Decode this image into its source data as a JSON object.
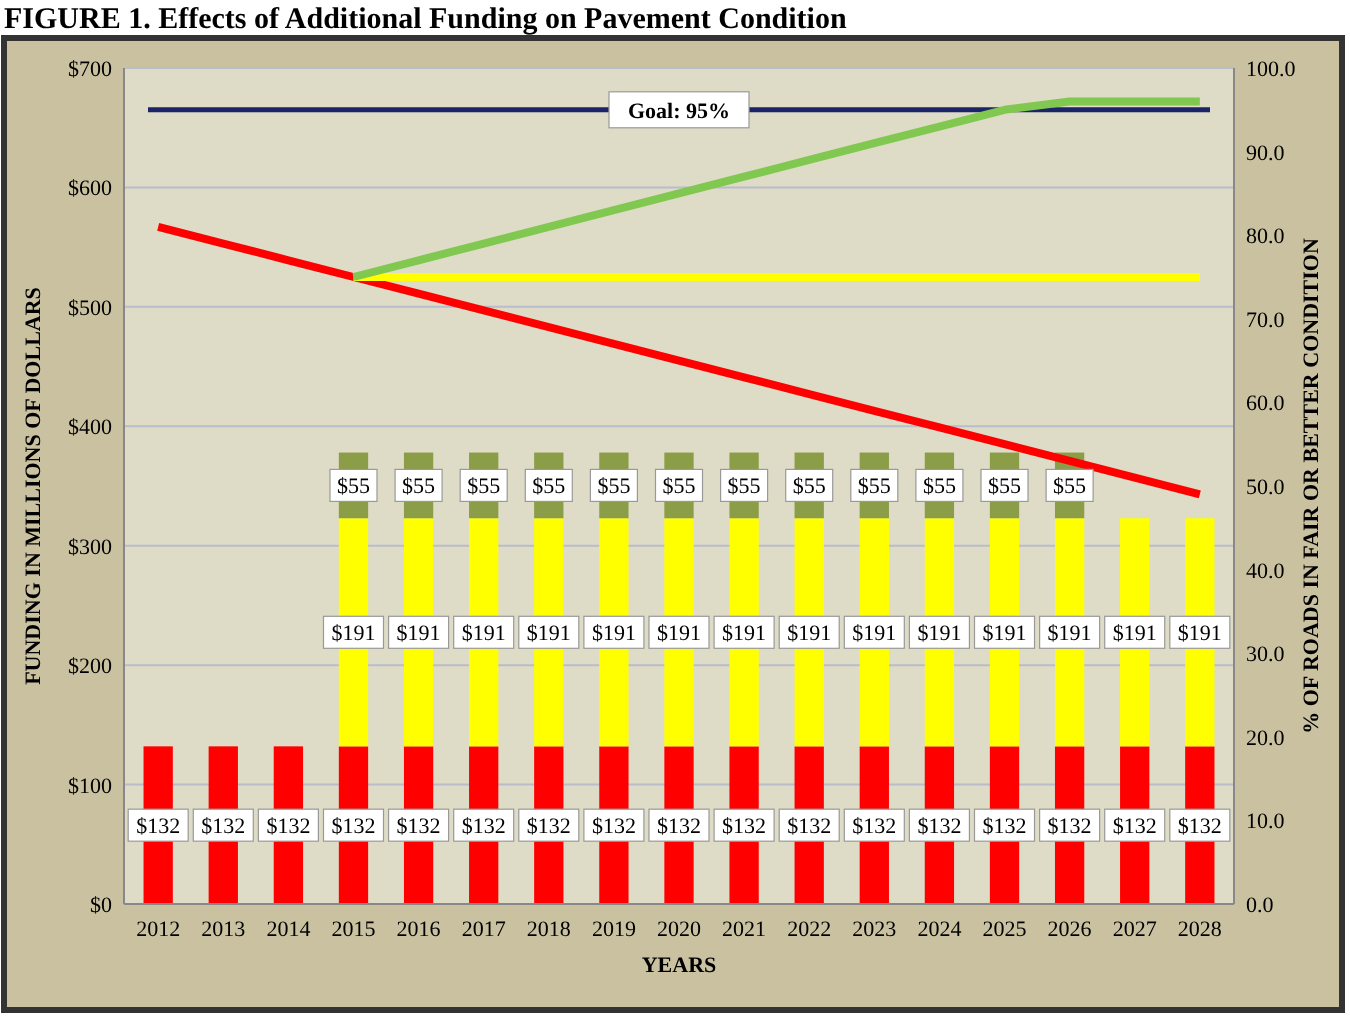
{
  "chart_data": {
    "type": "bar",
    "title": "FIGURE 1. Effects of Additional Funding on Pavement Condition",
    "xlabel": "YEARS",
    "ylabel": "FUNDING IN MILLIONS OF DOLLARS",
    "y2label": "% OF ROADS IN FAIR OR BETTER CONDITION",
    "categories": [
      "2012",
      "2013",
      "2014",
      "2015",
      "2016",
      "2017",
      "2018",
      "2019",
      "2020",
      "2021",
      "2022",
      "2023",
      "2024",
      "2025",
      "2026",
      "2027",
      "2028"
    ],
    "stacked": true,
    "grid": "y",
    "ylim": [
      0,
      700
    ],
    "yticks": [
      {
        "value": 0,
        "label": "$0"
      },
      {
        "value": 100,
        "label": "$100"
      },
      {
        "value": 200,
        "label": "$200"
      },
      {
        "value": 300,
        "label": "$300"
      },
      {
        "value": 400,
        "label": "$400"
      },
      {
        "value": 500,
        "label": "$500"
      },
      {
        "value": 600,
        "label": "$600"
      },
      {
        "value": 700,
        "label": "$700"
      }
    ],
    "y2lim": [
      0,
      100
    ],
    "y2ticks": [
      {
        "value": 0,
        "label": "0.0"
      },
      {
        "value": 10,
        "label": "10.0"
      },
      {
        "value": 20,
        "label": "20.0"
      },
      {
        "value": 30,
        "label": "30.0"
      },
      {
        "value": 40,
        "label": "40.0"
      },
      {
        "value": 50,
        "label": "50.0"
      },
      {
        "value": 60,
        "label": "60.0"
      },
      {
        "value": 70,
        "label": "70.0"
      },
      {
        "value": 80,
        "label": "80.0"
      },
      {
        "value": 90,
        "label": "90.0"
      },
      {
        "value": 100,
        "label": "100.0"
      }
    ],
    "series": [
      {
        "color": "#ff0000",
        "values": [
          132,
          132,
          132,
          132,
          132,
          132,
          132,
          132,
          132,
          132,
          132,
          132,
          132,
          132,
          132,
          132,
          132
        ],
        "value_labels": [
          "$132",
          "$132",
          "$132",
          "$132",
          "$132",
          "$132",
          "$132",
          "$132",
          "$132",
          "$132",
          "$132",
          "$132",
          "$132",
          "$132",
          "$132",
          "$132",
          "$132"
        ]
      },
      {
        "color": "#ffff00",
        "values": [
          null,
          null,
          null,
          191,
          191,
          191,
          191,
          191,
          191,
          191,
          191,
          191,
          191,
          191,
          191,
          191,
          191
        ],
        "value_labels": [
          null,
          null,
          null,
          "$191",
          "$191",
          "$191",
          "$191",
          "$191",
          "$191",
          "$191",
          "$191",
          "$191",
          "$191",
          "$191",
          "$191",
          "$191",
          "$191"
        ]
      },
      {
        "color": "#8b9d46",
        "values": [
          null,
          null,
          null,
          55,
          55,
          55,
          55,
          55,
          55,
          55,
          55,
          55,
          55,
          55,
          55,
          null,
          null
        ],
        "value_labels": [
          null,
          null,
          null,
          "$55",
          "$55",
          "$55",
          "$55",
          "$55",
          "$55",
          "$55",
          "$55",
          "$55",
          "$55",
          "$55",
          "$55",
          null,
          null
        ]
      },
      {
        "type": "line",
        "axis": "y2",
        "color": "#ff0000",
        "values": [
          81,
          79,
          77,
          75,
          73,
          71,
          69,
          67,
          65,
          63,
          61,
          59,
          57,
          55,
          53,
          51,
          49
        ]
      },
      {
        "type": "line",
        "axis": "y2",
        "color": "#ffff00",
        "values": [
          null,
          null,
          null,
          75,
          75,
          75,
          75,
          75,
          75,
          75,
          75,
          75,
          75,
          75,
          75,
          75,
          75
        ]
      },
      {
        "type": "line",
        "axis": "y2",
        "color": "#80c850",
        "values": [
          null,
          null,
          null,
          75,
          77,
          79,
          81,
          83,
          85,
          87,
          89,
          91,
          93,
          95,
          96,
          96,
          96
        ]
      }
    ],
    "ref_lines": [
      {
        "axis": "y2",
        "value": 95,
        "label": "Goal: 95%",
        "color": "#1a2466"
      }
    ]
  }
}
